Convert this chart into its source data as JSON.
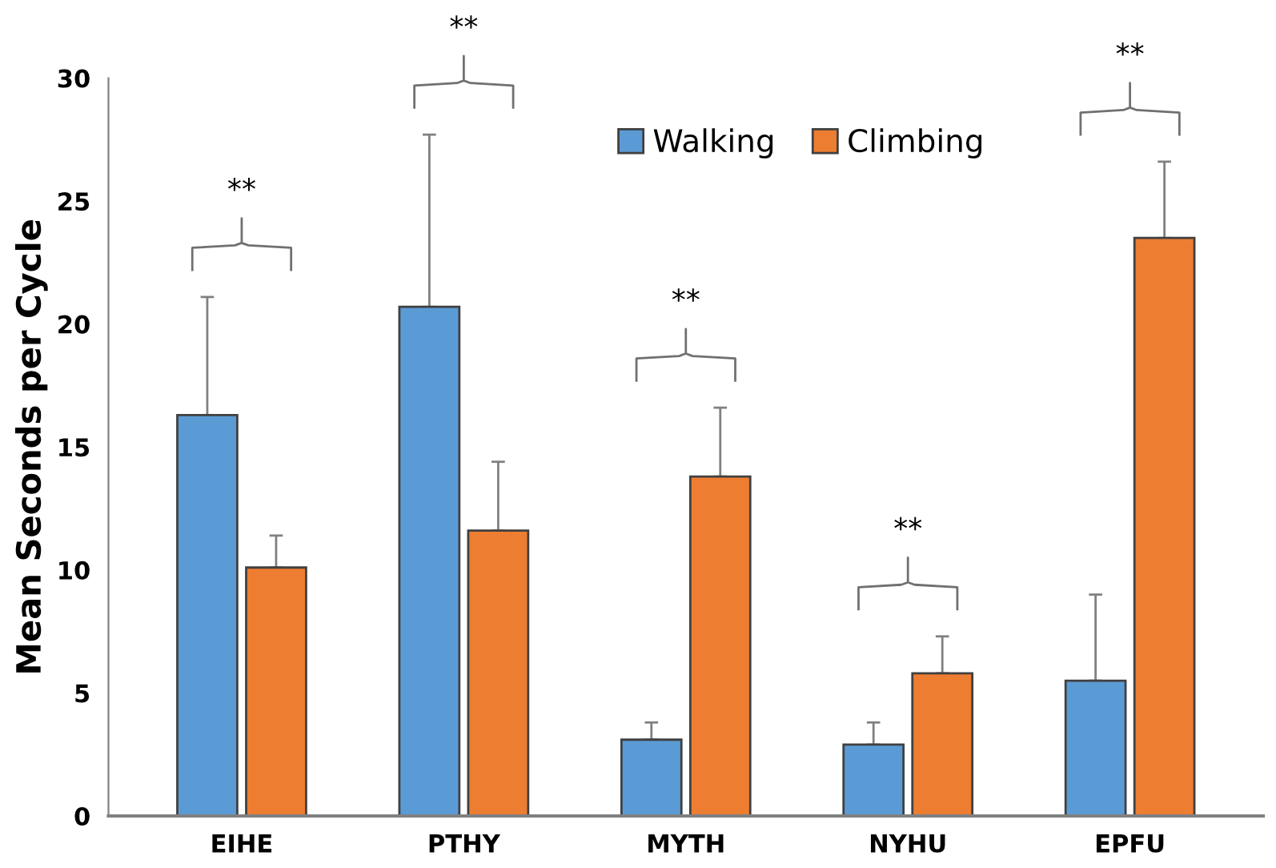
{
  "chart_data": {
    "type": "bar",
    "ylabel": "Mean Seconds per Cycle",
    "categories": [
      "EIHE",
      "PTHY",
      "MYTH",
      "NYHU",
      "EPFU"
    ],
    "series": [
      {
        "name": "Walking",
        "color": "#5b9bd5",
        "values": [
          16.3,
          20.7,
          3.1,
          2.9,
          5.5
        ],
        "errors": [
          [
            16.3,
            21.1
          ],
          [
            20.7,
            27.7
          ],
          [
            3.1,
            3.8
          ],
          [
            2.9,
            3.8
          ],
          [
            5.5,
            9.0
          ]
        ]
      },
      {
        "name": "Climbing",
        "color": "#ed7d31",
        "values": [
          10.1,
          11.6,
          13.8,
          5.8,
          23.5
        ],
        "errors": [
          [
            10.1,
            11.4
          ],
          [
            11.6,
            14.4
          ],
          [
            13.8,
            16.6
          ],
          [
            5.8,
            7.3
          ],
          [
            23.5,
            26.6
          ]
        ]
      }
    ],
    "ylim": [
      0,
      30
    ],
    "yticks": [
      0,
      5,
      10,
      15,
      20,
      25,
      30
    ],
    "grid": false,
    "legend": "top",
    "annotations": [
      "**",
      "**",
      "**",
      "**",
      "**"
    ]
  }
}
